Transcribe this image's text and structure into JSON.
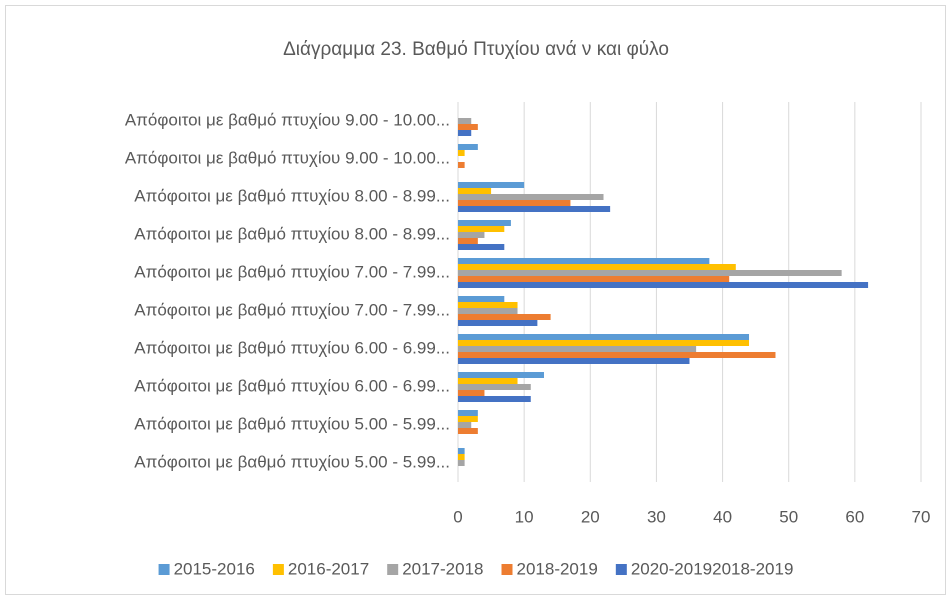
{
  "chart_data": {
    "type": "bar",
    "orientation": "horizontal",
    "title": "Διάγραμμα 23. Βαθμό Πτυχίου ανά ν και φύλο",
    "categories": [
      "Απόφοιτοι με βαθμό πτυχίου 9.00 - 10.00...",
      "Απόφοιτοι με βαθμό πτυχίου 9.00 - 10.00...",
      "Απόφοιτοι με βαθμό πτυχίου 8.00 - 8.99...",
      "Απόφοιτοι με βαθμό πτυχίου 8.00 - 8.99...",
      "Απόφοιτοι με βαθμό πτυχίου 7.00 - 7.99...",
      "Απόφοιτοι με βαθμό πτυχίου 7.00 - 7.99...",
      "Απόφοιτοι με βαθμό πτυχίου 6.00 - 6.99...",
      "Απόφοιτοι με βαθμό πτυχίου 6.00 - 6.99...",
      "Απόφοιτοι με βαθμό πτυχίου 5.00 - 5.99...",
      "Απόφοιτοι με βαθμό πτυχίου 5.00 - 5.99..."
    ],
    "series": [
      {
        "name": "2015-2016",
        "color": "#5b9bd5",
        "values": [
          0,
          3,
          10,
          8,
          38,
          7,
          44,
          13,
          3,
          1
        ]
      },
      {
        "name": "2016-2017",
        "color": "#ffc000",
        "values": [
          0,
          1,
          5,
          7,
          42,
          9,
          44,
          9,
          3,
          1
        ]
      },
      {
        "name": "2017-2018",
        "color": "#a5a5a5",
        "values": [
          2,
          0,
          22,
          4,
          58,
          9,
          36,
          11,
          2,
          1
        ]
      },
      {
        "name": "2018-2019",
        "color": "#ed7d31",
        "values": [
          3,
          1,
          17,
          3,
          41,
          14,
          48,
          4,
          3,
          0
        ]
      },
      {
        "name": "2020-20192018-2019",
        "color": "#4472c4",
        "values": [
          2,
          0,
          23,
          7,
          62,
          12,
          35,
          11,
          0,
          0
        ]
      }
    ],
    "xlim": [
      0,
      70
    ],
    "xticks": [
      0,
      10,
      20,
      30,
      40,
      50,
      60,
      70
    ],
    "grid": true,
    "legend": "bottom"
  }
}
